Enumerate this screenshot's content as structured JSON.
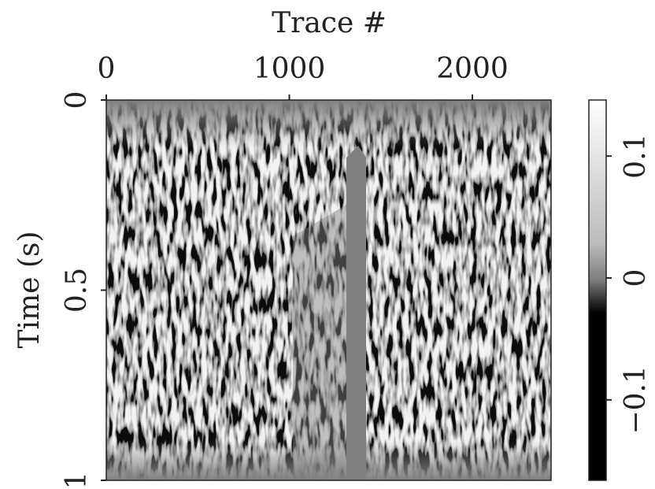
{
  "chart_data": {
    "type": "image",
    "x_label": "Trace #",
    "y_label": "Time (s)",
    "xlim": [
      0,
      2430
    ],
    "xticks": [
      0,
      1000,
      2000
    ],
    "ylim": [
      0,
      1
    ],
    "yticks": [
      0,
      0.5,
      1
    ],
    "y_inverted": true,
    "colormap": "gray",
    "clim": [
      -0.166,
      0.146
    ],
    "cticks": [
      {
        "value": -0.1,
        "label": "−0.1"
      },
      0,
      0.1
    ]
  }
}
